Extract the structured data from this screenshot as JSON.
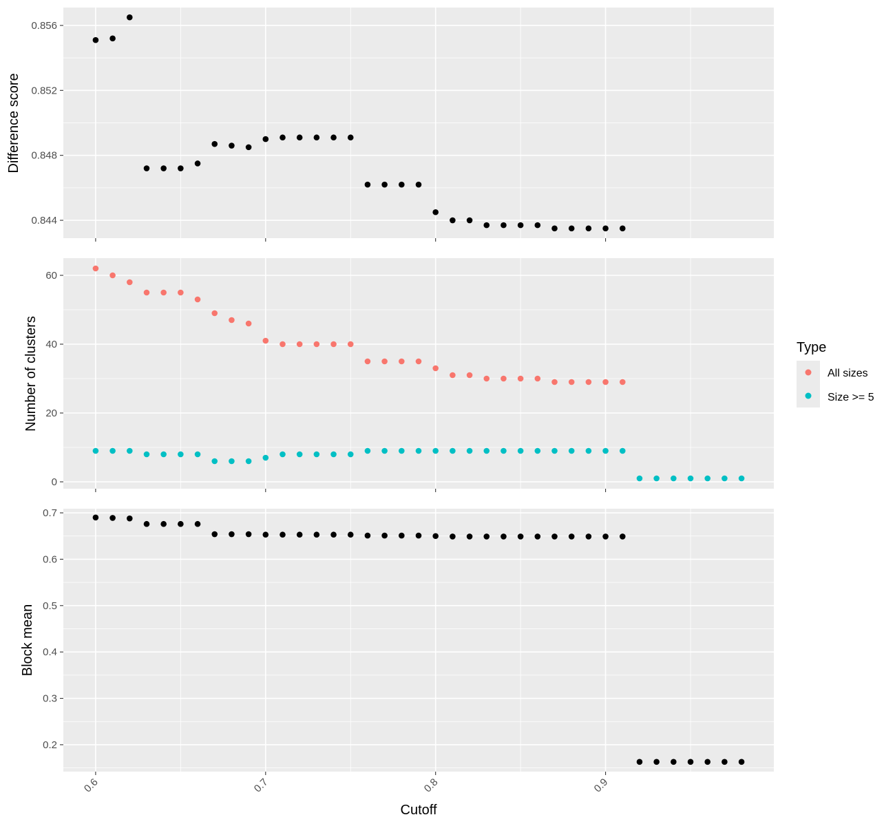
{
  "chart_data": [
    {
      "type": "scatter",
      "panel": "top",
      "xlabel": "",
      "ylabel": "Difference score",
      "xlim": [
        0.581,
        0.999
      ],
      "ylim": [
        0.8429,
        0.8571
      ],
      "y_ticks": [
        0.844,
        0.848,
        0.852,
        0.856
      ],
      "y_tick_labels": [
        "0.844",
        "0.848",
        "0.852",
        "0.856"
      ],
      "grid": true,
      "series": [
        {
          "color": "#000000",
          "x": [
            0.6,
            0.61,
            0.62,
            0.63,
            0.64,
            0.65,
            0.66,
            0.67,
            0.68,
            0.69,
            0.7,
            0.71,
            0.72,
            0.73,
            0.74,
            0.75,
            0.76,
            0.77,
            0.78,
            0.79,
            0.8,
            0.81,
            0.82,
            0.83,
            0.84,
            0.85,
            0.86,
            0.87,
            0.88,
            0.89,
            0.9,
            0.91
          ],
          "y": [
            0.8551,
            0.8552,
            0.8565,
            0.8472,
            0.8472,
            0.8472,
            0.8475,
            0.8487,
            0.8486,
            0.8485,
            0.849,
            0.8491,
            0.8491,
            0.8491,
            0.8491,
            0.8491,
            0.8462,
            0.8462,
            0.8462,
            0.8462,
            0.8445,
            0.844,
            0.844,
            0.8437,
            0.8437,
            0.8437,
            0.8437,
            0.8435,
            0.8435,
            0.8435,
            0.8435,
            0.8435
          ]
        }
      ]
    },
    {
      "type": "scatter",
      "panel": "middle",
      "xlabel": "",
      "ylabel": "Number of clusters",
      "xlim": [
        0.581,
        0.999
      ],
      "ylim": [
        -2,
        65
      ],
      "y_ticks": [
        0,
        20,
        40,
        60
      ],
      "y_tick_labels": [
        "0",
        "20",
        "40",
        "60"
      ],
      "grid": true,
      "series": [
        {
          "name": "All sizes",
          "color": "#F8766D",
          "x": [
            0.6,
            0.61,
            0.62,
            0.63,
            0.64,
            0.65,
            0.66,
            0.67,
            0.68,
            0.69,
            0.7,
            0.71,
            0.72,
            0.73,
            0.74,
            0.75,
            0.76,
            0.77,
            0.78,
            0.79,
            0.8,
            0.81,
            0.82,
            0.83,
            0.84,
            0.85,
            0.86,
            0.87,
            0.88,
            0.89,
            0.9,
            0.91
          ],
          "y": [
            62,
            60,
            58,
            55,
            55,
            55,
            53,
            49,
            47,
            46,
            41,
            40,
            40,
            40,
            40,
            40,
            35,
            35,
            35,
            35,
            33,
            31,
            31,
            30,
            30,
            30,
            30,
            29,
            29,
            29,
            29,
            29
          ]
        },
        {
          "name": "Size >= 5",
          "color": "#00BFC4",
          "x": [
            0.6,
            0.61,
            0.62,
            0.63,
            0.64,
            0.65,
            0.66,
            0.67,
            0.68,
            0.69,
            0.7,
            0.71,
            0.72,
            0.73,
            0.74,
            0.75,
            0.76,
            0.77,
            0.78,
            0.79,
            0.8,
            0.81,
            0.82,
            0.83,
            0.84,
            0.85,
            0.86,
            0.87,
            0.88,
            0.89,
            0.9,
            0.91,
            0.92,
            0.93,
            0.94,
            0.95,
            0.96,
            0.97,
            0.98
          ],
          "y": [
            9,
            9,
            9,
            8,
            8,
            8,
            8,
            6,
            6,
            6,
            7,
            8,
            8,
            8,
            8,
            8,
            9,
            9,
            9,
            9,
            9,
            9,
            9,
            9,
            9,
            9,
            9,
            9,
            9,
            9,
            9,
            9,
            1,
            1,
            1,
            1,
            1,
            1,
            1
          ]
        }
      ]
    },
    {
      "type": "scatter",
      "panel": "bottom",
      "xlabel": "Cutoff",
      "ylabel": "Block mean",
      "xlim": [
        0.581,
        0.999
      ],
      "ylim": [
        0.142,
        0.709
      ],
      "y_ticks": [
        0.2,
        0.3,
        0.4,
        0.5,
        0.6,
        0.7
      ],
      "y_tick_labels": [
        "0.2",
        "0.3",
        "0.4",
        "0.5",
        "0.6",
        "0.7"
      ],
      "x_ticks": [
        0.6,
        0.7,
        0.8,
        0.9
      ],
      "x_tick_labels": [
        "0.6",
        "0.7",
        "0.8",
        "0.9"
      ],
      "grid": true,
      "series": [
        {
          "color": "#000000",
          "x": [
            0.6,
            0.61,
            0.62,
            0.63,
            0.64,
            0.65,
            0.66,
            0.67,
            0.68,
            0.69,
            0.7,
            0.71,
            0.72,
            0.73,
            0.74,
            0.75,
            0.76,
            0.77,
            0.78,
            0.79,
            0.8,
            0.81,
            0.82,
            0.83,
            0.84,
            0.85,
            0.86,
            0.87,
            0.88,
            0.89,
            0.9,
            0.91,
            0.92,
            0.93,
            0.94,
            0.95,
            0.96,
            0.97,
            0.98
          ],
          "y": [
            0.69,
            0.689,
            0.688,
            0.676,
            0.676,
            0.676,
            0.676,
            0.654,
            0.654,
            0.654,
            0.653,
            0.653,
            0.653,
            0.653,
            0.653,
            0.653,
            0.651,
            0.651,
            0.651,
            0.651,
            0.65,
            0.649,
            0.649,
            0.649,
            0.649,
            0.649,
            0.649,
            0.649,
            0.649,
            0.649,
            0.649,
            0.649,
            0.163,
            0.163,
            0.163,
            0.163,
            0.163,
            0.163,
            0.163
          ]
        }
      ]
    }
  ],
  "legend": {
    "title": "Type",
    "placement": "right",
    "items": [
      {
        "label": "All sizes",
        "color": "#F8766D"
      },
      {
        "label": "Size >= 5",
        "color": "#00BFC4"
      }
    ]
  },
  "theme": {
    "panel_background": "#EBEBEB",
    "grid_color": "#FFFFFF",
    "point_color": "#000000"
  }
}
